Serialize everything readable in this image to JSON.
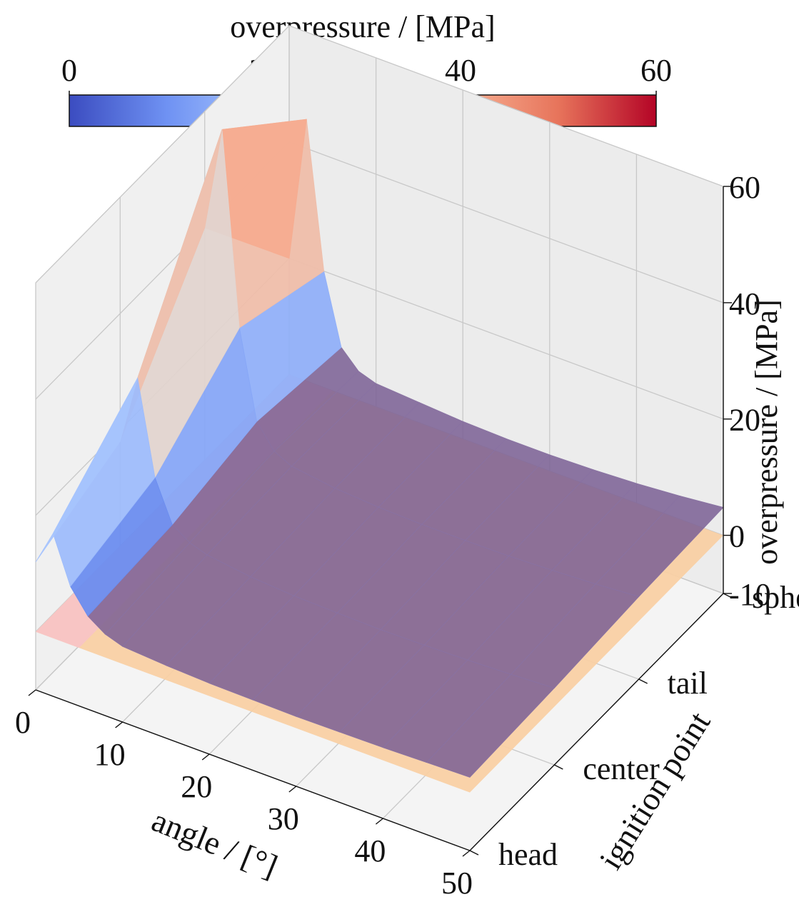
{
  "colorbar": {
    "label": "overpressure / [MPa]",
    "ticks": [
      0,
      20,
      40,
      60
    ],
    "tick_labels": [
      "0",
      "20",
      "40",
      "60"
    ],
    "range": [
      0,
      60
    ],
    "colormap": "coolwarm",
    "stops": [
      "#3b4cc0",
      "#6f92f3",
      "#aac7fd",
      "#dddcdc",
      "#f7b194",
      "#e7745b",
      "#b40426"
    ]
  },
  "chart_data": {
    "type": "surface3d",
    "title": "",
    "xlabel": "angle / [°]",
    "ylabel": "ignition point",
    "zlabel": "overpressure / [MPa]",
    "x_ticks": [
      0,
      10,
      20,
      30,
      40,
      50
    ],
    "x_tick_labels": [
      "0",
      "10",
      "20",
      "30",
      "40",
      "50"
    ],
    "y_categories": [
      "head",
      "center",
      "tail",
      "sphere"
    ],
    "z_ticks": [
      -10,
      0,
      20,
      40,
      60
    ],
    "z_tick_labels": [
      "-10",
      "0",
      "20",
      "40",
      "60"
    ],
    "xlim": [
      0,
      50
    ],
    "zlim": [
      -10,
      60
    ],
    "grid": true,
    "x": [
      0,
      2,
      4,
      6,
      8,
      10,
      15,
      20,
      25,
      30,
      35,
      40,
      45,
      50
    ],
    "series": [
      {
        "name": "head",
        "values": [
          12,
          18,
          10,
          6,
          4,
          3,
          2.5,
          2.2,
          2.1,
          2.0,
          2.1,
          2.2,
          2.4,
          2.6
        ]
      },
      {
        "name": "center",
        "values": [
          18,
          30,
          14,
          7,
          5,
          4,
          3,
          2.5,
          2.3,
          2.2,
          2.3,
          2.5,
          2.8,
          3.2
        ]
      },
      {
        "name": "tail",
        "values": [
          40,
          58,
          25,
          10,
          6,
          4.5,
          3.5,
          3,
          2.8,
          2.8,
          2.9,
          3.2,
          3.6,
          4.2
        ]
      },
      {
        "name": "sphere",
        "values": [
          20,
          45,
          20,
          8,
          5,
          4,
          3.5,
          3,
          2.8,
          2.8,
          3.0,
          3.4,
          4.0,
          4.8
        ]
      }
    ],
    "planes": [
      {
        "z": 0,
        "x_range": [
          0,
          50
        ],
        "color": "#f9d0a4",
        "opacity": 0.95
      },
      {
        "z": 0,
        "x_range": [
          0,
          5
        ],
        "color": "#f7c3c7",
        "opacity": 0.9
      }
    ],
    "surface_overlay_color": "#7a5f94"
  }
}
